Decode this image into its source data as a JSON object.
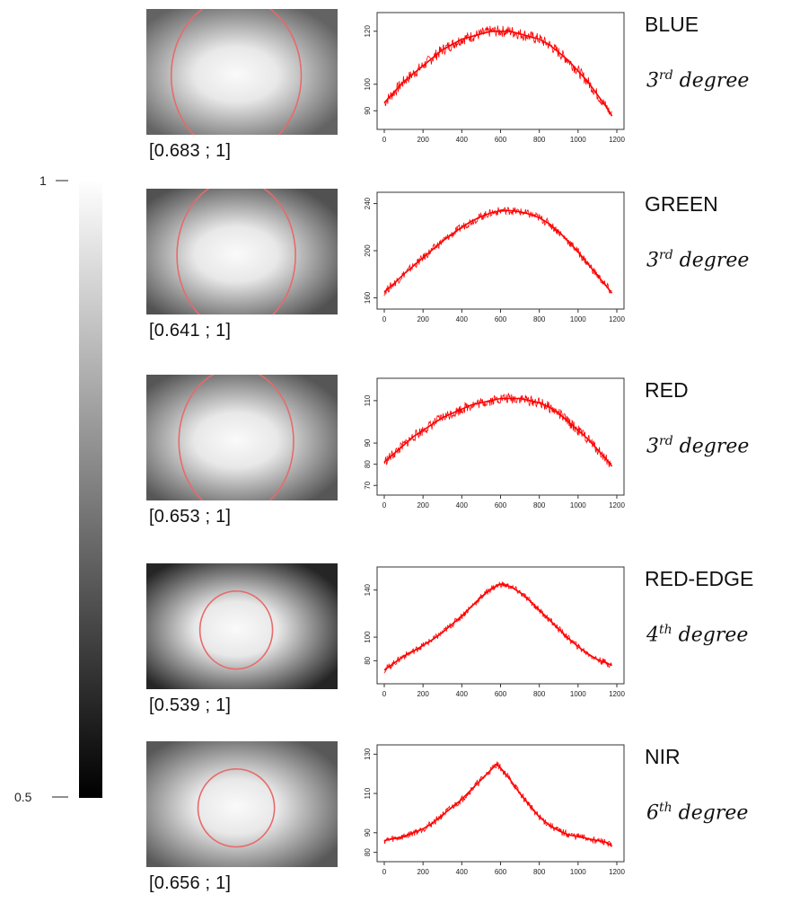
{
  "colorbar": {
    "max_label": "1",
    "min_label": "0.5",
    "range": [
      0.5,
      1
    ]
  },
  "colors": {
    "curve": "#ff0000",
    "circle": "#e86a6a"
  },
  "chart_data": [
    {
      "type": "line",
      "band": "BLUE",
      "degree_num": "3",
      "degree_sup": "rd",
      "degree_word": "degree",
      "range_label": "[0.683 ; 1]",
      "vignette_min": 0.683,
      "circle_rx_frac": 0.34,
      "circle_ry_frac": 0.62,
      "xlim": [
        0,
        1200
      ],
      "ylim": [
        85,
        125
      ],
      "xticks": [
        "0",
        "200",
        "400",
        "600",
        "800",
        "1000",
        "1200"
      ],
      "yticks": [
        "90",
        "100",
        "120"
      ],
      "x": [
        0,
        50,
        100,
        150,
        200,
        250,
        300,
        350,
        400,
        450,
        500,
        550,
        600,
        650,
        700,
        750,
        800,
        850,
        900,
        950,
        1000,
        1050,
        1100,
        1150,
        1175
      ],
      "y": [
        93,
        97,
        101,
        104,
        107,
        110,
        113,
        115,
        117,
        118,
        119,
        120,
        120,
        120,
        119,
        118,
        117,
        115,
        112,
        109,
        105,
        101,
        96,
        91,
        88
      ],
      "noise": 2.2
    },
    {
      "type": "line",
      "band": "GREEN",
      "degree_num": "3",
      "degree_sup": "rd",
      "degree_word": "degree",
      "range_label": "[0.641 ; 1]",
      "vignette_min": 0.641,
      "circle_rx_frac": 0.31,
      "circle_ry_frac": 0.6,
      "xlim": [
        0,
        1200
      ],
      "ylim": [
        155,
        245
      ],
      "xticks": [
        "0",
        "200",
        "400",
        "600",
        "800",
        "1000",
        "1200"
      ],
      "yticks": [
        "160",
        "200",
        "240"
      ],
      "x": [
        0,
        50,
        100,
        150,
        200,
        250,
        300,
        350,
        400,
        450,
        500,
        550,
        600,
        650,
        700,
        750,
        800,
        850,
        900,
        950,
        1000,
        1050,
        1100,
        1150,
        1175
      ],
      "y": [
        165,
        172,
        180,
        187,
        194,
        201,
        208,
        214,
        220,
        225,
        229,
        232,
        234,
        234,
        233,
        231,
        228,
        223,
        216,
        208,
        199,
        189,
        179,
        169,
        164
      ],
      "noise": 3.5
    },
    {
      "type": "line",
      "band": "RED",
      "degree_num": "3",
      "degree_sup": "rd",
      "degree_word": "degree",
      "range_label": "[0.653 ; 1]",
      "vignette_min": 0.653,
      "circle_rx_frac": 0.3,
      "circle_ry_frac": 0.58,
      "xlim": [
        0,
        1200
      ],
      "ylim": [
        68,
        118
      ],
      "xticks": [
        "0",
        "200",
        "400",
        "600",
        "800",
        "1000",
        "1200"
      ],
      "yticks": [
        "70",
        "80",
        "90",
        "110"
      ],
      "x": [
        0,
        50,
        100,
        150,
        200,
        250,
        300,
        350,
        400,
        450,
        500,
        550,
        600,
        650,
        700,
        750,
        800,
        850,
        900,
        950,
        1000,
        1050,
        1100,
        1150,
        1175
      ],
      "y": [
        81,
        85,
        89,
        93,
        96,
        99,
        102,
        104,
        106,
        108,
        109,
        110,
        111,
        111,
        111,
        110,
        109,
        107,
        104,
        100,
        96,
        92,
        87,
        82,
        79
      ],
      "noise": 2.5
    },
    {
      "type": "line",
      "band": "RED-EDGE",
      "degree_num": "4",
      "degree_sup": "th",
      "degree_word": "degree",
      "range_label": "[0.539 ; 1]",
      "vignette_min": 0.539,
      "circle_rx_frac": 0.19,
      "circle_ry_frac": 0.31,
      "xlim": [
        0,
        1200
      ],
      "ylim": [
        65,
        155
      ],
      "xticks": [
        "0",
        "200",
        "400",
        "600",
        "800",
        "1000",
        "1200"
      ],
      "yticks": [
        "80",
        "100",
        "140"
      ],
      "x": [
        0,
        50,
        100,
        150,
        200,
        250,
        300,
        350,
        400,
        450,
        500,
        550,
        600,
        650,
        700,
        750,
        800,
        850,
        900,
        950,
        1000,
        1050,
        1100,
        1150,
        1175
      ],
      "y": [
        72,
        78,
        84,
        88,
        93,
        98,
        104,
        111,
        118,
        126,
        134,
        141,
        145,
        143,
        138,
        131,
        123,
        115,
        107,
        99,
        92,
        86,
        81,
        78,
        76
      ],
      "noise": 2.8
    },
    {
      "type": "line",
      "band": "NIR",
      "degree_num": "6",
      "degree_sup": "th",
      "degree_word": "degree",
      "range_label": "[0.656 ; 1]",
      "vignette_min": 0.656,
      "circle_rx_frac": 0.2,
      "circle_ry_frac": 0.31,
      "xlim": [
        0,
        1200
      ],
      "ylim": [
        78,
        132
      ],
      "xticks": [
        "0",
        "200",
        "400",
        "600",
        "800",
        "1000",
        "1200"
      ],
      "yticks": [
        "80",
        "90",
        "110",
        "130"
      ],
      "x": [
        0,
        50,
        100,
        150,
        200,
        250,
        300,
        350,
        400,
        450,
        500,
        550,
        580,
        600,
        650,
        700,
        750,
        800,
        850,
        900,
        950,
        1000,
        1050,
        1100,
        1150,
        1175
      ],
      "y": [
        86,
        87,
        88,
        90,
        92,
        95,
        99,
        103,
        107,
        112,
        117,
        122,
        125,
        123,
        117,
        110,
        104,
        98,
        94,
        91,
        89,
        88,
        87,
        86,
        85,
        83
      ],
      "noise": 1.8
    }
  ]
}
